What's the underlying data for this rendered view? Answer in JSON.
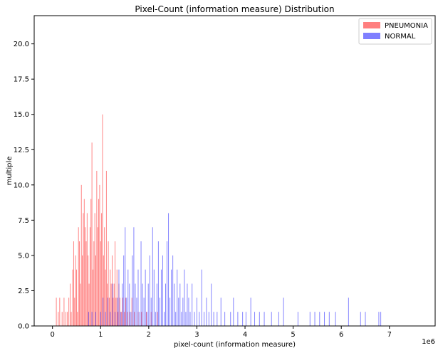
{
  "chart_data": {
    "type": "histogram",
    "title": "Pixel-Count (information measure) Distribution",
    "xlabel": "pixel-count (information measure)",
    "ylabel": "multiple",
    "x_offset_text": "1e6",
    "xlim": [
      -0.38,
      7.95
    ],
    "ylim": [
      0,
      22
    ],
    "x_ticks": [
      0,
      1,
      2,
      3,
      4,
      5,
      6,
      7
    ],
    "x_tick_labels": [
      "0",
      "1",
      "2",
      "3",
      "4",
      "5",
      "6",
      "7"
    ],
    "y_ticks": [
      0.0,
      2.5,
      5.0,
      7.5,
      10.0,
      12.5,
      15.0,
      17.5,
      20.0
    ],
    "y_tick_labels": [
      "0.0",
      "2.5",
      "5.0",
      "7.5",
      "10.0",
      "12.5",
      "15.0",
      "17.5",
      "20.0"
    ],
    "legend_position": "top-right",
    "series": [
      {
        "name": "PNEUMONIA",
        "color": "#ff0000",
        "alpha": 0.5,
        "bars": [
          [
            0.08,
            2
          ],
          [
            0.12,
            1
          ],
          [
            0.15,
            2
          ],
          [
            0.2,
            1
          ],
          [
            0.24,
            2
          ],
          [
            0.28,
            1
          ],
          [
            0.31,
            1
          ],
          [
            0.34,
            2
          ],
          [
            0.37,
            3
          ],
          [
            0.39,
            1
          ],
          [
            0.42,
            4
          ],
          [
            0.44,
            6
          ],
          [
            0.46,
            2
          ],
          [
            0.48,
            5
          ],
          [
            0.5,
            4
          ],
          [
            0.52,
            1
          ],
          [
            0.54,
            7
          ],
          [
            0.56,
            6
          ],
          [
            0.58,
            3
          ],
          [
            0.6,
            10
          ],
          [
            0.62,
            5
          ],
          [
            0.64,
            8
          ],
          [
            0.66,
            9
          ],
          [
            0.68,
            7
          ],
          [
            0.7,
            6
          ],
          [
            0.72,
            8
          ],
          [
            0.74,
            5
          ],
          [
            0.76,
            3
          ],
          [
            0.78,
            7
          ],
          [
            0.8,
            9
          ],
          [
            0.82,
            13
          ],
          [
            0.84,
            4
          ],
          [
            0.86,
            6
          ],
          [
            0.88,
            8
          ],
          [
            0.9,
            5
          ],
          [
            0.92,
            11
          ],
          [
            0.94,
            7
          ],
          [
            0.96,
            9
          ],
          [
            0.98,
            10
          ],
          [
            1.0,
            6
          ],
          [
            1.02,
            8
          ],
          [
            1.04,
            15
          ],
          [
            1.06,
            5
          ],
          [
            1.08,
            7
          ],
          [
            1.1,
            4
          ],
          [
            1.12,
            11
          ],
          [
            1.14,
            3
          ],
          [
            1.16,
            6
          ],
          [
            1.18,
            2
          ],
          [
            1.2,
            4
          ],
          [
            1.22,
            3
          ],
          [
            1.24,
            5
          ],
          [
            1.26,
            2
          ],
          [
            1.28,
            3
          ],
          [
            1.3,
            6
          ],
          [
            1.32,
            2
          ],
          [
            1.34,
            4
          ],
          [
            1.36,
            1
          ],
          [
            1.38,
            3
          ],
          [
            1.4,
            2
          ],
          [
            1.43,
            1
          ],
          [
            1.46,
            2
          ],
          [
            1.49,
            1
          ],
          [
            1.52,
            2
          ],
          [
            1.56,
            1
          ],
          [
            1.6,
            1
          ],
          [
            1.65,
            2
          ],
          [
            1.7,
            1
          ],
          [
            1.78,
            1
          ],
          [
            1.85,
            1
          ],
          [
            1.95,
            1
          ],
          [
            2.05,
            1
          ],
          [
            2.18,
            1
          ]
        ]
      },
      {
        "name": "NORMAL",
        "color": "#0000ff",
        "alpha": 0.5,
        "bars": [
          [
            0.75,
            1
          ],
          [
            0.82,
            1
          ],
          [
            0.9,
            1
          ],
          [
            1.0,
            1
          ],
          [
            1.05,
            2
          ],
          [
            1.1,
            1
          ],
          [
            1.15,
            2
          ],
          [
            1.2,
            1
          ],
          [
            1.25,
            3
          ],
          [
            1.3,
            1
          ],
          [
            1.35,
            2
          ],
          [
            1.38,
            4
          ],
          [
            1.42,
            1
          ],
          [
            1.45,
            3
          ],
          [
            1.48,
            5
          ],
          [
            1.51,
            7
          ],
          [
            1.54,
            2
          ],
          [
            1.57,
            4
          ],
          [
            1.6,
            3
          ],
          [
            1.63,
            1
          ],
          [
            1.66,
            5
          ],
          [
            1.69,
            7
          ],
          [
            1.72,
            3
          ],
          [
            1.75,
            2
          ],
          [
            1.78,
            4
          ],
          [
            1.81,
            1
          ],
          [
            1.84,
            6
          ],
          [
            1.87,
            3
          ],
          [
            1.9,
            2
          ],
          [
            1.93,
            4
          ],
          [
            1.96,
            1
          ],
          [
            1.99,
            3
          ],
          [
            2.02,
            5
          ],
          [
            2.05,
            2
          ],
          [
            2.08,
            7
          ],
          [
            2.11,
            4
          ],
          [
            2.14,
            1
          ],
          [
            2.17,
            3
          ],
          [
            2.2,
            6
          ],
          [
            2.23,
            2
          ],
          [
            2.26,
            4
          ],
          [
            2.29,
            5
          ],
          [
            2.32,
            1
          ],
          [
            2.35,
            3
          ],
          [
            2.38,
            6
          ],
          [
            2.41,
            8
          ],
          [
            2.44,
            2
          ],
          [
            2.47,
            4
          ],
          [
            2.5,
            5
          ],
          [
            2.53,
            3
          ],
          [
            2.56,
            1
          ],
          [
            2.59,
            4
          ],
          [
            2.62,
            2
          ],
          [
            2.65,
            3
          ],
          [
            2.68,
            1
          ],
          [
            2.71,
            2
          ],
          [
            2.74,
            4
          ],
          [
            2.77,
            1
          ],
          [
            2.8,
            3
          ],
          [
            2.83,
            2
          ],
          [
            2.86,
            1
          ],
          [
            2.9,
            3
          ],
          [
            2.95,
            1
          ],
          [
            3.0,
            2
          ],
          [
            3.05,
            1
          ],
          [
            3.1,
            4
          ],
          [
            3.15,
            1
          ],
          [
            3.2,
            2
          ],
          [
            3.25,
            1
          ],
          [
            3.3,
            3
          ],
          [
            3.35,
            1
          ],
          [
            3.42,
            1
          ],
          [
            3.5,
            2
          ],
          [
            3.58,
            1
          ],
          [
            3.7,
            1
          ],
          [
            3.76,
            2
          ],
          [
            3.85,
            1
          ],
          [
            3.95,
            1
          ],
          [
            4.02,
            1
          ],
          [
            4.12,
            2
          ],
          [
            4.2,
            1
          ],
          [
            4.3,
            1
          ],
          [
            4.4,
            1
          ],
          [
            4.55,
            1
          ],
          [
            4.7,
            1
          ],
          [
            4.8,
            2
          ],
          [
            5.1,
            1
          ],
          [
            5.35,
            1
          ],
          [
            5.45,
            1
          ],
          [
            5.55,
            1
          ],
          [
            5.65,
            1
          ],
          [
            5.75,
            1
          ],
          [
            5.88,
            1
          ],
          [
            6.15,
            2
          ],
          [
            6.4,
            1
          ],
          [
            6.5,
            1
          ],
          [
            6.78,
            1
          ],
          [
            6.82,
            1
          ]
        ]
      }
    ]
  }
}
